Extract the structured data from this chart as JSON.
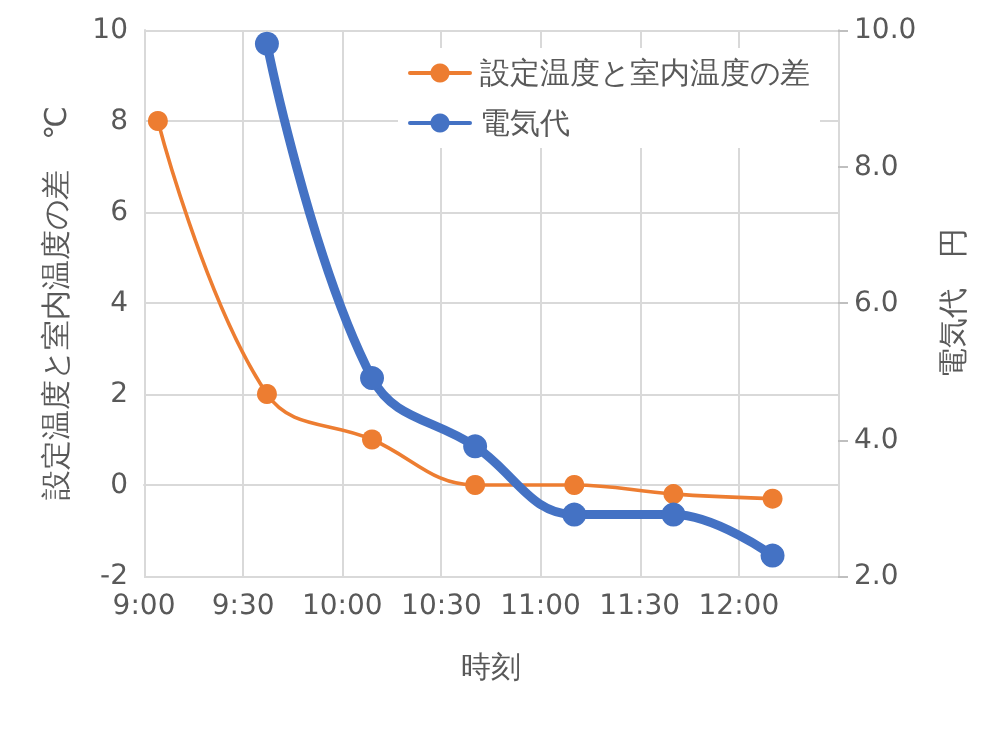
{
  "chart_data": {
    "type": "line",
    "xlabel": "時刻",
    "ylabel": "設定温度と室内温度の差　℃",
    "y2label": "電気代　円",
    "xlim": [
      9,
      12.5
    ],
    "xticks": [
      {
        "value": 9,
        "label": "9:00"
      },
      {
        "value": 9.5,
        "label": "9:30"
      },
      {
        "value": 10,
        "label": "10:00"
      },
      {
        "value": 10.5,
        "label": "10:30"
      },
      {
        "value": 11,
        "label": "11:00"
      },
      {
        "value": 11.5,
        "label": "11:30"
      },
      {
        "value": 12,
        "label": "12:00"
      }
    ],
    "ylim": [
      -2,
      10
    ],
    "yticks": [
      -2,
      0,
      2,
      4,
      6,
      8,
      10
    ],
    "y2lim": [
      2,
      10
    ],
    "y2ticks": [
      {
        "value": 2,
        "label": "2.0"
      },
      {
        "value": 4,
        "label": "4.0"
      },
      {
        "value": 6,
        "label": "6.0"
      },
      {
        "value": 8,
        "label": "8.0"
      },
      {
        "value": 10,
        "label": "10.0"
      }
    ],
    "series": [
      {
        "name": "設定温度と室内温度の差",
        "color": "#ed7d31",
        "x": [
          9.07,
          9.62,
          10.15,
          10.67,
          11.17,
          11.67,
          12.17
        ],
        "values": [
          8,
          2,
          1,
          0,
          0,
          -0.2,
          -0.3
        ]
      },
      {
        "name": "電気代",
        "color": "#4472c4",
        "axis": "y2",
        "x": [
          9.62,
          10.15,
          10.67,
          11.17,
          11.67,
          12.17
        ],
        "values": [
          9.8,
          4.9,
          3.9,
          2.9,
          2.9,
          2.3
        ]
      }
    ],
    "grid": true,
    "legend": "top right",
    "marker": "circle",
    "line_style": "solid"
  }
}
